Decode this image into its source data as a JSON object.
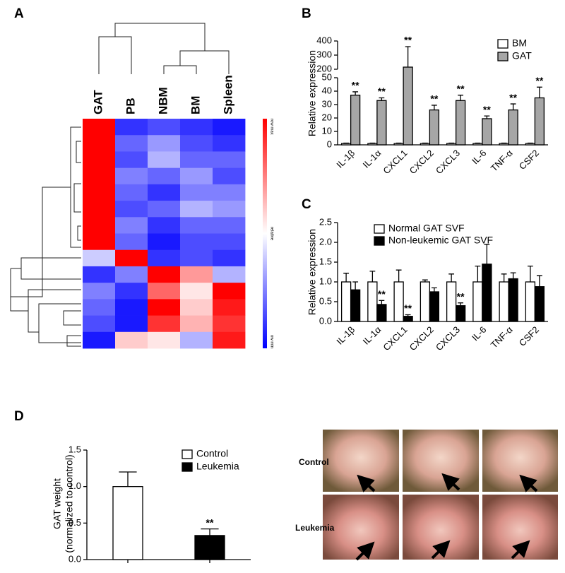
{
  "chart_data": [
    {
      "type": "heatmap",
      "panel": "A",
      "columns": [
        "GAT",
        "PB",
        "NBM",
        "BM",
        "Spleen"
      ],
      "colorbar_labels": [
        "row max",
        "relative",
        "ow min"
      ],
      "zlim": [
        -1,
        1
      ],
      "values": [
        [
          1,
          -0.8,
          -0.7,
          -0.8,
          -0.9
        ],
        [
          1,
          -0.6,
          -0.4,
          -0.7,
          -0.8
        ],
        [
          1,
          -0.7,
          -0.3,
          -0.6,
          -0.6
        ],
        [
          1,
          -0.5,
          -0.6,
          -0.4,
          -0.7
        ],
        [
          1,
          -0.6,
          -0.8,
          -0.5,
          -0.5
        ],
        [
          1,
          -0.7,
          -0.6,
          -0.3,
          -0.4
        ],
        [
          1,
          -0.5,
          -0.8,
          -0.6,
          -0.6
        ],
        [
          1,
          -0.6,
          -0.9,
          -0.7,
          -0.7
        ],
        [
          -0.2,
          1,
          -0.8,
          -0.7,
          -0.8
        ],
        [
          -0.8,
          -0.5,
          1,
          0.4,
          -0.3
        ],
        [
          -0.5,
          -0.8,
          0.6,
          0.1,
          1
        ],
        [
          -0.6,
          -0.9,
          1,
          0.2,
          0.9
        ],
        [
          -0.7,
          -0.9,
          0.8,
          0.3,
          0.8
        ],
        [
          -0.9,
          0.2,
          0.1,
          -0.3,
          0.9
        ]
      ]
    },
    {
      "type": "bar",
      "panel": "B",
      "ylabel": [
        "Relative expression"
      ],
      "categories": [
        "IL-1β",
        "IL-1α",
        "CXCL1",
        "CXCL2",
        "CXCL3",
        "IL-6",
        "TNF-α",
        "CSF2"
      ],
      "series": [
        {
          "name": "BM",
          "color": "#ffffff",
          "values": [
            1,
            1,
            1,
            1,
            1,
            1,
            1,
            1
          ],
          "errors": [
            0.3,
            0.3,
            0.3,
            0.3,
            0.3,
            0.3,
            0.3,
            0.3
          ]
        },
        {
          "name": "GAT",
          "color": "#a6a6a6",
          "values": [
            37,
            33,
            215,
            26,
            33,
            19.5,
            26,
            35
          ],
          "errors": [
            2.5,
            2,
            145,
            3.5,
            4,
            2,
            4.5,
            8
          ]
        }
      ],
      "annotations": [
        "**",
        "**",
        "**",
        "**",
        "**",
        "**",
        "**",
        "**"
      ],
      "ylim": [
        0,
        400
      ],
      "axis_break": [
        50,
        200
      ],
      "yticks": [
        0,
        10,
        20,
        30,
        40,
        50,
        200,
        300,
        400
      ]
    },
    {
      "type": "bar",
      "panel": "C",
      "ylabel": [
        "Relative   expression"
      ],
      "categories": [
        "IL-1β",
        "IL-1α",
        "CXCL1",
        "CXCL2",
        "CXCL3",
        "IL-6",
        "TNF-α",
        "CSF2"
      ],
      "series": [
        {
          "name": "Normal GAT SVF",
          "color": "#ffffff",
          "values": [
            1,
            1,
            1,
            1,
            1,
            1,
            1,
            1
          ],
          "errors": [
            0.22,
            0.27,
            0.3,
            0.05,
            0.2,
            0.4,
            0.2,
            0.4
          ]
        },
        {
          "name": "Non-leukemic GAT SVF",
          "color": "#000000",
          "values": [
            0.8,
            0.43,
            0.13,
            0.75,
            0.4,
            1.45,
            1.08,
            0.88
          ],
          "errors": [
            0.2,
            0.1,
            0.04,
            0.1,
            0.07,
            0.5,
            0.15,
            0.28
          ]
        }
      ],
      "annotations": [
        null,
        "**",
        "**",
        null,
        "**",
        null,
        null,
        null
      ],
      "ylim": [
        0,
        2.5
      ],
      "yticks": [
        {
          "value": 0,
          "label": "0.0"
        },
        0.5,
        {
          "value": 1,
          "label": "1.0"
        },
        1.5,
        {
          "value": 2,
          "label": "2.0"
        },
        2.5
      ]
    },
    {
      "type": "bar",
      "panel": "D",
      "ylabel": [
        "GAT weight",
        "(normalized to control)"
      ],
      "categories": [
        null,
        null
      ],
      "series": [
        {
          "name": "Control",
          "color": "#ffffff",
          "values": [
            1.0,
            null
          ],
          "errors": [
            0.2,
            null
          ]
        },
        {
          "name": "Leukemia",
          "color": "#000000",
          "values": [
            null,
            0.33
          ],
          "errors": [
            null,
            0.09
          ]
        }
      ],
      "annotations": [
        null,
        "**"
      ],
      "ylim": [
        0,
        1.5
      ],
      "yticks": [
        {
          "value": 0,
          "label": "0.0"
        },
        0.5,
        {
          "value": 1,
          "label": "1.0"
        },
        1.5
      ]
    }
  ],
  "photo_panel": {
    "row_labels": [
      "Control",
      "Leukemia"
    ]
  }
}
